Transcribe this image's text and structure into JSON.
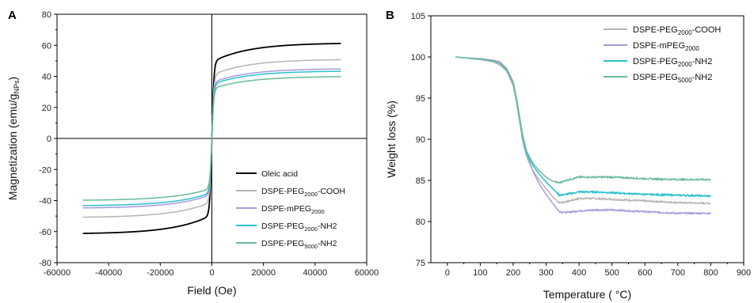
{
  "chart_data": [
    {
      "panel": "A",
      "type": "line",
      "xlabel": "Field (Oe)",
      "ylabel": {
        "base": "Magnetization (emu/g",
        "sub": "NPs",
        "end": ")"
      },
      "xlim": [
        -60000,
        60000
      ],
      "ylim": [
        -80,
        80
      ],
      "xticks": [
        -60000,
        -40000,
        -20000,
        0,
        20000,
        40000,
        60000
      ],
      "yticks": [
        -80,
        -60,
        -40,
        -20,
        0,
        20,
        40,
        60,
        80
      ],
      "legend_position": "bottom-right",
      "x_range": [
        -50000,
        50000
      ],
      "series": [
        {
          "name": {
            "base": "Oleic acid"
          },
          "color": "#000000",
          "ms": 61.5
        },
        {
          "name": {
            "base": "DSPE-PEG",
            "sub": "2000",
            "end": "-COOH"
          },
          "color": "#b5b5b5",
          "ms": 51
        },
        {
          "name": {
            "base": "DSPE-mPEG",
            "sub": "2000",
            "end": ""
          },
          "color": "#a79bdd",
          "ms": 45
        },
        {
          "name": {
            "base": "DSPE-PEG",
            "sub": "2000",
            "end": "-NH2"
          },
          "color": "#2bbfcf",
          "ms": 43.5
        },
        {
          "name": {
            "base": "DSPE-PEG",
            "sub": "5000",
            "end": "-NH2"
          },
          "color": "#69bb9b",
          "ms": 40
        }
      ]
    },
    {
      "panel": "B",
      "type": "line",
      "xlabel": "Temperature ( °C)",
      "ylabel": "Weight loss (%)",
      "xlim": [
        -50,
        900
      ],
      "ylim": [
        75,
        105
      ],
      "xticks": [
        0,
        100,
        200,
        300,
        400,
        500,
        600,
        700,
        800,
        900
      ],
      "yticks": [
        75,
        80,
        85,
        90,
        95,
        100,
        105
      ],
      "legend_position": "top-right",
      "series": [
        {
          "name": {
            "base": "DSPE-PEG",
            "sub": "2000",
            "end": "-COOH"
          },
          "color": "#b5b5b5",
          "x": [
            25,
            50,
            100,
            140,
            160,
            180,
            200,
            210,
            220,
            230,
            240,
            250,
            260,
            280,
            300,
            320,
            340,
            360,
            400,
            450,
            500,
            600,
            700,
            800
          ],
          "y": [
            100,
            99.9,
            99.7,
            99.4,
            99,
            98.3,
            96.5,
            94.5,
            92,
            89.5,
            88,
            87,
            86.2,
            85,
            84,
            83,
            82.3,
            82.4,
            82.8,
            82.8,
            82.7,
            82.5,
            82.3,
            82.2
          ]
        },
        {
          "name": {
            "base": "DSPE-mPEG",
            "sub": "2000",
            "end": ""
          },
          "color": "#a79bdd",
          "x": [
            25,
            50,
            100,
            140,
            160,
            180,
            200,
            210,
            220,
            230,
            240,
            250,
            260,
            280,
            300,
            320,
            340,
            360,
            400,
            450,
            500,
            600,
            700,
            800
          ],
          "y": [
            100,
            99.9,
            99.8,
            99.6,
            99.4,
            98.6,
            97,
            95,
            92.5,
            90.3,
            88.6,
            87.2,
            86.1,
            84.5,
            83.3,
            82.2,
            81.2,
            81.1,
            81.3,
            81.4,
            81.4,
            81.2,
            81.0,
            81.0
          ]
        },
        {
          "name": {
            "base": "DSPE-PEG",
            "sub": "2000",
            "end": "-NH2"
          },
          "color": "#2bbfcf",
          "x": [
            25,
            50,
            100,
            140,
            160,
            180,
            200,
            210,
            220,
            230,
            240,
            250,
            260,
            280,
            300,
            320,
            340,
            360,
            400,
            450,
            500,
            600,
            700,
            800
          ],
          "y": [
            100,
            99.9,
            99.7,
            99.5,
            99.2,
            98.4,
            96.8,
            94.8,
            92.4,
            90,
            88.3,
            87.6,
            86.8,
            85.7,
            84.8,
            84,
            83.2,
            83.3,
            83.6,
            83.6,
            83.5,
            83.3,
            83.2,
            83.1
          ]
        },
        {
          "name": {
            "base": "DSPE-PEG",
            "sub": "5000",
            "end": "-NH2"
          },
          "color": "#69bb9b",
          "x": [
            25,
            50,
            100,
            140,
            160,
            180,
            200,
            210,
            220,
            230,
            240,
            250,
            260,
            280,
            300,
            320,
            340,
            360,
            400,
            450,
            500,
            600,
            700,
            800
          ],
          "y": [
            100,
            99.9,
            99.7,
            99.5,
            99.2,
            98.5,
            96.9,
            95,
            92.6,
            90.2,
            88.6,
            87.8,
            87.1,
            86.1,
            85.4,
            84.9,
            84.7,
            85,
            85.4,
            85.4,
            85.4,
            85.2,
            85.1,
            85.1
          ]
        }
      ]
    }
  ]
}
